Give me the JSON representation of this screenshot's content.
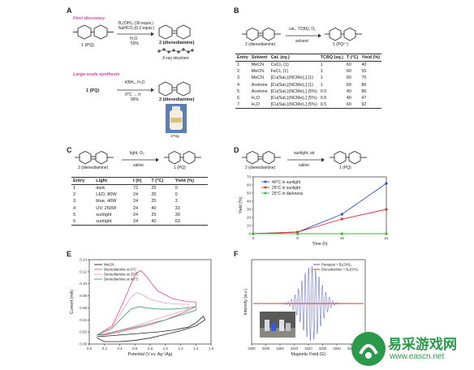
{
  "panels": {
    "A": {
      "label": "A",
      "first_discovery": "First discovery",
      "reagents1": "B₂(OH)₄ (30 equiv.)",
      "reagents2": "NaHCO₃(0.2 equiv.)",
      "solvent": "H₂O",
      "yield": "50%",
      "product_label": "2 (dienediamine)",
      "xray": "X-ray structure",
      "reactant_label": "1 (PQ)",
      "large_scale": "Large-scale synthesis",
      "reactant2": "1 (PQ)",
      "reag_large1": "KBH₄, H₂O",
      "reag_large2": "0°C → rt",
      "yield2": "96%",
      "product2": "2 (dienediamine)",
      "mass": "276g"
    },
    "B": {
      "label": "B",
      "reactant": "2 (dienediamine)",
      "cond1": "cat., TCBQ, O₂",
      "cond2": "solvent",
      "product": "1 (PQ²⁺)",
      "headers": [
        "Entry",
        "Solvent",
        "Cat. (eq.)",
        "TCBQ (eq.)",
        "T (°C)",
        "Yield (%)"
      ],
      "rows": [
        [
          "1",
          "MeCN",
          "CuCl₂ (1)",
          "1",
          "60",
          "40"
        ],
        [
          "2",
          "MeCN",
          "FeCl₃ (1)",
          "1",
          "60",
          "55"
        ],
        [
          "3",
          "MeCN",
          "[Cu(Sal₂)(NCMe)₂] (1)",
          "1",
          "60",
          "70"
        ],
        [
          "4",
          "Acetone",
          "[Cu(Sal₂)(NCMe)₂] (1)",
          "1",
          "60",
          "86"
        ],
        [
          "5",
          "Acetone",
          "[Cu(Sal₂)(NCMe)₂] (5%)",
          "0.5",
          "40",
          "86"
        ],
        [
          "6",
          "H₂O",
          "[Cu(Sal₂)(NCMe)₂] (5%)",
          "0.5",
          "40",
          "47"
        ],
        [
          "7",
          "H₂O",
          "[Cu(Sal₂)(NCMe)₂] (5%)",
          "0.5",
          "60",
          "92"
        ]
      ]
    },
    "C": {
      "label": "C",
      "reactant": "2 (dienediamine)",
      "cond1": "light, O₂",
      "cond2": "saline",
      "product": "1 (PQ)",
      "headers": [
        "Entry",
        "Light",
        "t (h)",
        "T (°C)",
        "Yield (%)"
      ],
      "rows": [
        [
          "1",
          "dark",
          "72",
          "25",
          "0"
        ],
        [
          "2",
          "LED, 80W",
          "24",
          "25",
          "0"
        ],
        [
          "3",
          "blue, 40W",
          "24",
          "25",
          "3"
        ],
        [
          "4",
          "UV, 250W",
          "24",
          "40",
          "33"
        ],
        [
          "5",
          "sunlight",
          "24",
          "25",
          "30"
        ],
        [
          "6",
          "sunlight",
          "24",
          "40",
          "63"
        ]
      ]
    },
    "D": {
      "label": "D",
      "reactant": "2 (dienediamine)",
      "cond1": "sunlight, air",
      "cond2": "saline",
      "product": "1 (PQ)"
    },
    "E": {
      "label": "E"
    },
    "F": {
      "label": "F"
    }
  },
  "chart_data": [
    {
      "id": "D",
      "type": "line",
      "xlabel": "Time (h)",
      "ylabel": "Yield (%)",
      "xlim": [
        0,
        24
      ],
      "ylim": [
        0,
        70
      ],
      "xticks": [
        0,
        8,
        16,
        24
      ],
      "yticks": [
        0,
        10,
        20,
        30,
        40,
        50,
        60,
        70
      ],
      "legend_position": "top-left",
      "series": [
        {
          "name": "40°C in sunlight",
          "color": "#3050d0",
          "x": [
            0,
            8,
            16,
            24
          ],
          "y": [
            0,
            2,
            24,
            62
          ]
        },
        {
          "name": "25°C in sunlight",
          "color": "#e03030",
          "x": [
            0,
            8,
            16,
            24
          ],
          "y": [
            0,
            2,
            18,
            30
          ]
        },
        {
          "name": "25°C in darkness",
          "color": "#30c030",
          "x": [
            0,
            8,
            16,
            24
          ],
          "y": [
            0,
            0,
            0,
            0
          ]
        }
      ]
    },
    {
      "id": "E",
      "type": "line",
      "xlabel": "Potential (V vs. Ag⁺/Ag)",
      "ylabel": "Current (mA)",
      "xlim": [
        0.0,
        1.6
      ],
      "ylim": [
        0.0,
        0.14
      ],
      "xticks": [
        0.0,
        0.2,
        0.4,
        0.6,
        0.8,
        1.0,
        1.2,
        1.4,
        1.6
      ],
      "yticks": [
        0.0,
        0.02,
        0.04,
        0.06,
        0.08,
        0.1,
        0.12,
        0.14
      ],
      "xticklabels": [
        "0.0",
        "0.2",
        "0.4",
        "0.6",
        "0.8",
        "1.0",
        "1.2",
        "1.4",
        "1.6"
      ],
      "yticklabels": [
        "0.00",
        "0.02",
        "0.04",
        "0.06",
        "0.08",
        "0.10",
        "0.12",
        "0.14"
      ],
      "legend_position": "top-left",
      "series": [
        {
          "name": "MeCN",
          "color": "#222222",
          "x": [
            0.1,
            0.3,
            0.5,
            0.7,
            0.9,
            1.1,
            1.3,
            1.4,
            1.5,
            1.52,
            1.4,
            1.2,
            1.0,
            0.8,
            0.6,
            0.4,
            0.2,
            0.1
          ],
          "y": [
            0.012,
            0.014,
            0.016,
            0.018,
            0.02,
            0.023,
            0.028,
            0.035,
            0.046,
            0.04,
            0.03,
            0.022,
            0.016,
            0.01,
            0.006,
            0.004,
            0.004,
            0.01
          ]
        },
        {
          "name": "Dienediamine at 0°C",
          "color": "#e84a8a",
          "x": [
            0.1,
            0.3,
            0.45,
            0.55,
            0.62,
            0.68,
            0.75,
            0.9,
            1.1,
            1.3,
            1.4,
            1.4,
            1.2,
            1.0,
            0.8,
            0.6,
            0.4,
            0.2,
            0.1
          ],
          "y": [
            0.015,
            0.03,
            0.07,
            0.1,
            0.118,
            0.122,
            0.112,
            0.088,
            0.075,
            0.07,
            0.07,
            0.062,
            0.05,
            0.04,
            0.032,
            0.026,
            0.02,
            0.015,
            0.015
          ]
        },
        {
          "name": "Dienediamine at 25°C",
          "color": "#f0a0b8",
          "x": [
            0.1,
            0.3,
            0.45,
            0.55,
            0.62,
            0.7,
            0.8,
            1.0,
            1.2,
            1.3,
            1.3,
            1.1,
            0.9,
            0.7,
            0.5,
            0.3,
            0.1
          ],
          "y": [
            0.015,
            0.028,
            0.058,
            0.078,
            0.085,
            0.082,
            0.074,
            0.068,
            0.066,
            0.066,
            0.058,
            0.05,
            0.042,
            0.034,
            0.026,
            0.02,
            0.015
          ]
        },
        {
          "name": "Dienediamine at 45°C",
          "color": "#40a070",
          "x": [
            0.1,
            0.3,
            0.45,
            0.55,
            0.65,
            0.75,
            0.9,
            1.1,
            1.3,
            1.4,
            1.4,
            1.2,
            1.0,
            0.8,
            0.6,
            0.4,
            0.2,
            0.1
          ],
          "y": [
            0.015,
            0.026,
            0.046,
            0.058,
            0.062,
            0.06,
            0.058,
            0.058,
            0.06,
            0.062,
            0.056,
            0.048,
            0.04,
            0.034,
            0.028,
            0.022,
            0.016,
            0.015
          ]
        }
      ]
    },
    {
      "id": "F",
      "type": "line",
      "xlabel": "Magnetic Field (G)",
      "ylabel": "Intensity (a.u.)",
      "xlim": [
        3280,
        3360
      ],
      "xticks": [
        3280,
        3290,
        3300,
        3310,
        3320,
        3330,
        3340,
        3350,
        3360
      ],
      "legend_position": "top-right",
      "series": [
        {
          "name": "Paraquat + B₂(OH)₄",
          "color": "#3a4ac0",
          "center": 3322,
          "width": 24,
          "amplitude": 1.0
        },
        {
          "name": "Dienediamine + B₂(OH)₄",
          "color": "#d02020",
          "center": 3322,
          "width": 0,
          "amplitude": 0.0
        }
      ]
    }
  ],
  "watermark": {
    "brand": "易采游戏网",
    "url": "www.eascn.net",
    "color": "#2a9a4a"
  }
}
